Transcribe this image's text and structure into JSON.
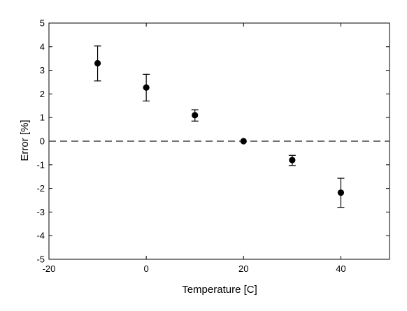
{
  "chart_data": {
    "type": "scatter",
    "title": "",
    "xlabel": "Temperature [C]",
    "ylabel": "Error [%]",
    "xlim": [
      -20,
      50
    ],
    "ylim": [
      -5,
      5
    ],
    "xticks": [
      -20,
      0,
      20,
      40
    ],
    "yticks": [
      -5,
      -4,
      -3,
      -2,
      -1,
      0,
      1,
      2,
      3,
      4,
      5
    ],
    "grid": false,
    "legend": "none",
    "reference_line": {
      "y": 0,
      "style": "dashed"
    },
    "series": [
      {
        "points": [
          {
            "x": -10,
            "y": 3.3,
            "err_low": 2.55,
            "err_high": 4.03
          },
          {
            "x": 0,
            "y": 2.27,
            "err_low": 1.7,
            "err_high": 2.83
          },
          {
            "x": 10,
            "y": 1.1,
            "err_low": 0.85,
            "err_high": 1.33
          },
          {
            "x": 20,
            "y": 0.0,
            "err_low": 0.0,
            "err_high": 0.0
          },
          {
            "x": 30,
            "y": -0.8,
            "err_low": -1.03,
            "err_high": -0.6
          },
          {
            "x": 40,
            "y": -2.18,
            "err_low": -2.8,
            "err_high": -1.57
          }
        ],
        "marker": "filled-circle",
        "color": "#000000"
      }
    ]
  }
}
